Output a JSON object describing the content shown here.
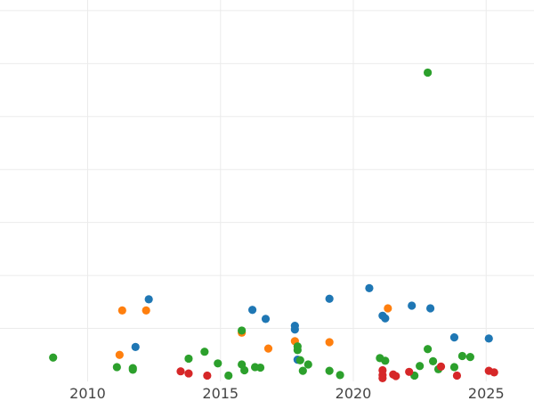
{
  "chart_data": {
    "type": "scatter",
    "title": "",
    "xlabel": "",
    "ylabel": "",
    "grid": true,
    "xlim": [
      2006.7,
      2026.8
    ],
    "ylim": [
      0,
      72
    ],
    "x_ticks": [
      2010,
      2015,
      2020,
      2025
    ],
    "x_tick_labels": [
      "2010",
      "2015",
      "2020",
      "2025"
    ],
    "y_gridlines": [
      10,
      20,
      30,
      40,
      50,
      60,
      70
    ],
    "series": [
      {
        "color": "#1f77b4",
        "points": [
          {
            "x": 2011.8,
            "y": 6.5
          },
          {
            "x": 2012.3,
            "y": 15.5
          },
          {
            "x": 2016.2,
            "y": 13.5
          },
          {
            "x": 2016.7,
            "y": 11.8
          },
          {
            "x": 2017.8,
            "y": 10.5
          },
          {
            "x": 2017.8,
            "y": 9.8
          },
          {
            "x": 2017.9,
            "y": 4.1
          },
          {
            "x": 2019.1,
            "y": 15.6
          },
          {
            "x": 2020.6,
            "y": 17.6
          },
          {
            "x": 2021.1,
            "y": 12.4
          },
          {
            "x": 2021.2,
            "y": 11.9
          },
          {
            "x": 2022.2,
            "y": 14.3
          },
          {
            "x": 2022.9,
            "y": 13.8
          },
          {
            "x": 2023.8,
            "y": 8.3
          },
          {
            "x": 2025.1,
            "y": 8.1
          }
        ]
      },
      {
        "color": "#ff7f0e",
        "points": [
          {
            "x": 2011.3,
            "y": 13.4
          },
          {
            "x": 2011.2,
            "y": 5.0
          },
          {
            "x": 2012.2,
            "y": 13.4
          },
          {
            "x": 2015.8,
            "y": 9.2
          },
          {
            "x": 2016.8,
            "y": 6.2
          },
          {
            "x": 2017.8,
            "y": 7.6
          },
          {
            "x": 2019.1,
            "y": 7.4
          },
          {
            "x": 2021.3,
            "y": 13.8
          }
        ]
      },
      {
        "color": "#2ca02c",
        "points": [
          {
            "x": 2008.7,
            "y": 4.5
          },
          {
            "x": 2011.1,
            "y": 2.7
          },
          {
            "x": 2011.7,
            "y": 2.5
          },
          {
            "x": 2011.7,
            "y": 2.2
          },
          {
            "x": 2013.8,
            "y": 4.3
          },
          {
            "x": 2014.4,
            "y": 5.6
          },
          {
            "x": 2014.9,
            "y": 3.4
          },
          {
            "x": 2015.3,
            "y": 1.1
          },
          {
            "x": 2015.8,
            "y": 9.6
          },
          {
            "x": 2015.8,
            "y": 3.2
          },
          {
            "x": 2015.9,
            "y": 2.1
          },
          {
            "x": 2016.3,
            "y": 2.7
          },
          {
            "x": 2016.5,
            "y": 2.6
          },
          {
            "x": 2017.9,
            "y": 6.6
          },
          {
            "x": 2017.9,
            "y": 5.9
          },
          {
            "x": 2018.0,
            "y": 4.0
          },
          {
            "x": 2018.1,
            "y": 2.0
          },
          {
            "x": 2018.3,
            "y": 3.2
          },
          {
            "x": 2019.1,
            "y": 2.0
          },
          {
            "x": 2019.5,
            "y": 1.2
          },
          {
            "x": 2021.0,
            "y": 4.4
          },
          {
            "x": 2021.2,
            "y": 3.9
          },
          {
            "x": 2022.3,
            "y": 1.1
          },
          {
            "x": 2022.5,
            "y": 2.9
          },
          {
            "x": 2022.8,
            "y": 6.1
          },
          {
            "x": 2022.8,
            "y": 58.3
          },
          {
            "x": 2023.0,
            "y": 3.8
          },
          {
            "x": 2023.2,
            "y": 2.3
          },
          {
            "x": 2023.8,
            "y": 2.7
          },
          {
            "x": 2024.1,
            "y": 4.8
          },
          {
            "x": 2024.4,
            "y": 4.6
          }
        ]
      },
      {
        "color": "#d62728",
        "points": [
          {
            "x": 2013.5,
            "y": 1.9
          },
          {
            "x": 2013.8,
            "y": 1.5
          },
          {
            "x": 2014.5,
            "y": 1.1
          },
          {
            "x": 2021.1,
            "y": 2.1
          },
          {
            "x": 2021.1,
            "y": 1.2
          },
          {
            "x": 2021.1,
            "y": 0.6
          },
          {
            "x": 2021.5,
            "y": 1.3
          },
          {
            "x": 2021.6,
            "y": 1.0
          },
          {
            "x": 2022.1,
            "y": 1.8
          },
          {
            "x": 2023.3,
            "y": 2.8
          },
          {
            "x": 2023.9,
            "y": 1.1
          },
          {
            "x": 2025.1,
            "y": 2.0
          },
          {
            "x": 2025.3,
            "y": 1.7
          }
        ]
      }
    ]
  }
}
